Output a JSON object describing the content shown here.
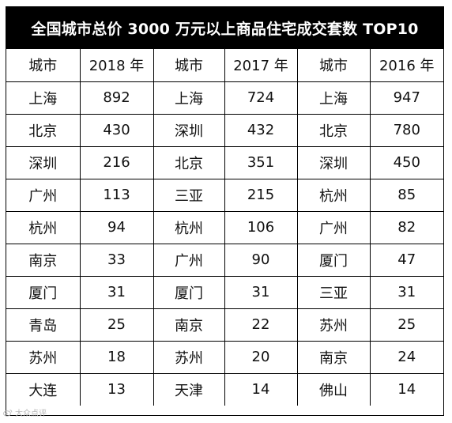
{
  "title": "全国城市总价 3000 万元以上商品住宅成交套数 TOP10",
  "columns": [
    "城市",
    "2018 年",
    "城市",
    "2017 年",
    "城市",
    "2016 年"
  ],
  "rows": [
    [
      "上海",
      "892",
      "上海",
      "724",
      "上海",
      "947"
    ],
    [
      "北京",
      "430",
      "深圳",
      "432",
      "北京",
      "780"
    ],
    [
      "深圳",
      "216",
      "北京",
      "351",
      "深圳",
      "450"
    ],
    [
      "广州",
      "113",
      "三亚",
      "215",
      "杭州",
      "85"
    ],
    [
      "杭州",
      "94",
      "杭州",
      "106",
      "广州",
      "82"
    ],
    [
      "南京",
      "33",
      "广州",
      "90",
      "厦门",
      "47"
    ],
    [
      "厦门",
      "31",
      "厦门",
      "31",
      "三亚",
      "31"
    ],
    [
      "青岛",
      "25",
      "南京",
      "22",
      "苏州",
      "25"
    ],
    [
      "苏州",
      "18",
      "苏州",
      "20",
      "南京",
      "24"
    ],
    [
      "大连",
      "13",
      "天津",
      "14",
      "佛山",
      "14"
    ]
  ],
  "watermark": {
    "text": "大众点评",
    "icon": "weibo-logo-icon"
  }
}
